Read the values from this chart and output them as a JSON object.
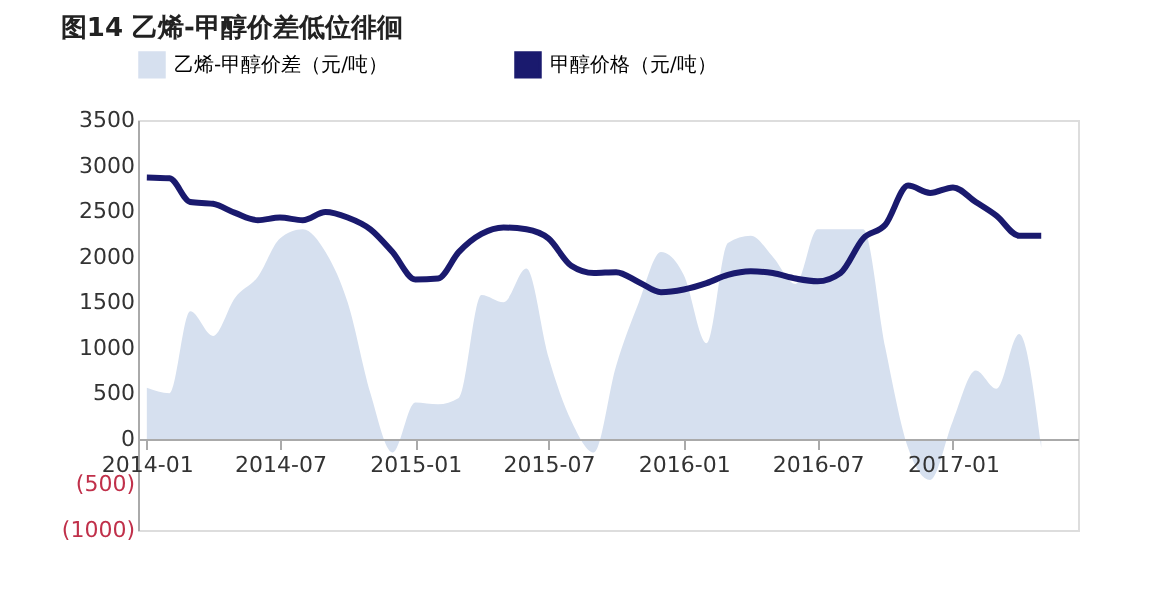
{
  "chart_data": {
    "type": "area",
    "title": "图14 乙烯-甲醇价差低位徘徊",
    "x": [
      "2014-01",
      "2014-02",
      "2014-03",
      "2014-04",
      "2014-05",
      "2014-06",
      "2014-07",
      "2014-08",
      "2014-09",
      "2014-10",
      "2014-11",
      "2014-12",
      "2015-01",
      "2015-02",
      "2015-03",
      "2015-04",
      "2015-05",
      "2015-06",
      "2015-07",
      "2015-08",
      "2015-09",
      "2015-10",
      "2015-11",
      "2015-12",
      "2016-01",
      "2016-02",
      "2016-03",
      "2016-04",
      "2016-05",
      "2016-06",
      "2016-07",
      "2016-08",
      "2016-09",
      "2016-10",
      "2016-11",
      "2016-12",
      "2017-01",
      "2017-02",
      "2017-03",
      "2017-04",
      "2017-05"
    ],
    "series": [
      {
        "name": "乙烯-甲醇价差（元/吨）",
        "type": "area",
        "color": "#d6e0ef",
        "values": [
          560,
          500,
          1400,
          1130,
          1550,
          1780,
          2200,
          2300,
          2050,
          1500,
          500,
          -150,
          400,
          380,
          450,
          1580,
          1500,
          1870,
          900,
          200,
          -150,
          800,
          1500,
          2050,
          1800,
          1050,
          2150,
          2230,
          2000,
          1700,
          2300,
          2300,
          2300,
          1000,
          -100,
          -450,
          200,
          750,
          550,
          1150,
          -100
        ]
      },
      {
        "name": "甲醇价格（元/吨）",
        "type": "line",
        "color": "#1a1a6e",
        "values": [
          2870,
          2860,
          2600,
          2580,
          2480,
          2400,
          2430,
          2400,
          2490,
          2430,
          2300,
          2050,
          1750,
          1760,
          2050,
          2250,
          2320,
          2300,
          2200,
          1900,
          1820,
          1830,
          1720,
          1610,
          1640,
          1710,
          1800,
          1840,
          1820,
          1760,
          1730,
          1820,
          2200,
          2350,
          2780,
          2700,
          2760,
          2600,
          2450,
          2230,
          2230
        ]
      }
    ],
    "xlim": [
      "2013-12-20",
      "2017-06-20"
    ],
    "xticks": [
      "2014-01",
      "2014-07",
      "2015-01",
      "2015-07",
      "2016-01",
      "2016-07",
      "2017-01"
    ],
    "ylim": [
      -1000,
      3500
    ],
    "yticks": [
      {
        "value": -1000,
        "label": "(1000)"
      },
      {
        "value": -500,
        "label": "(500)"
      },
      0,
      500,
      1000,
      1500,
      2000,
      2500,
      3000,
      3500
    ],
    "grid": false,
    "legend": "top",
    "line_style": "solid",
    "marker": "none"
  }
}
